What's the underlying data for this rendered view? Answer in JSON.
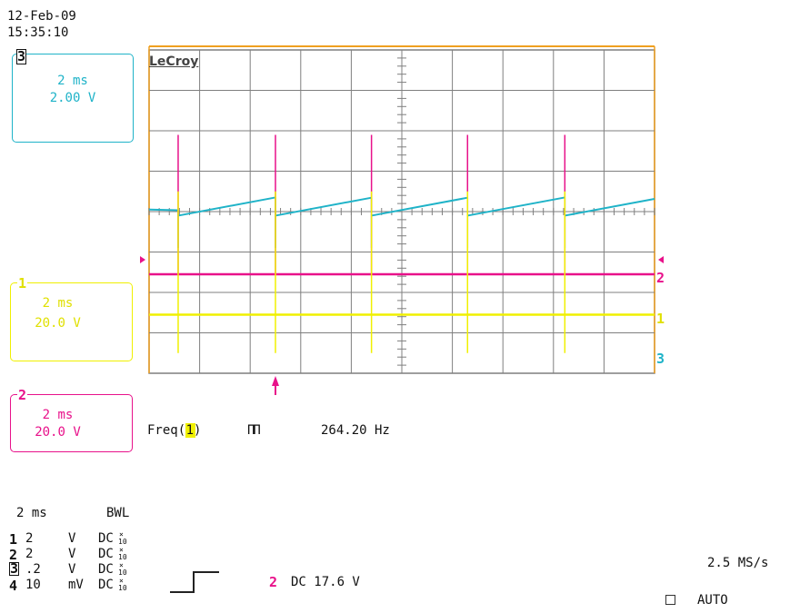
{
  "header": {
    "date": "12-Feb-09",
    "time": "15:35:10"
  },
  "brand": "LeCroy",
  "colors": {
    "ch1": "#f0f000",
    "ch2": "#e8118a",
    "ch3": "#1fb3c8",
    "grid": "#7f7f7f",
    "frame": "#f0a020"
  },
  "channel_boxes": [
    {
      "id": "3",
      "timebase": "2 ms",
      "volts": "2.00 V"
    },
    {
      "id": "1",
      "timebase": "2 ms",
      "volts": "20.0 V"
    },
    {
      "id": "2",
      "timebase": "2 ms",
      "volts": "20.0 V"
    }
  ],
  "trace_labels": {
    "ch2": "2",
    "ch1": "1",
    "ch3": "3"
  },
  "measurement": {
    "label": "Freq(",
    "channel": "1",
    "close": ")",
    "pulse_icon": "ΠΠ",
    "value": "264.20 Hz"
  },
  "settings": {
    "timebase": "2 ms",
    "bwl": "BWL",
    "rows": [
      {
        "ch": "1",
        "scale": "2",
        "unit": "V",
        "coupling": "DC",
        "probe_top": "×",
        "probe_bot": "10"
      },
      {
        "ch": "2",
        "scale": "2",
        "unit": "V",
        "coupling": "DC",
        "probe_top": "×",
        "probe_bot": "10"
      },
      {
        "ch": "3",
        "scale": ".2",
        "unit": "V",
        "coupling": "DC",
        "probe_top": "×",
        "probe_bot": "10"
      },
      {
        "ch": "4",
        "scale": "10",
        "unit": "mV",
        "coupling": "DC",
        "probe_top": "×",
        "probe_bot": "10"
      }
    ]
  },
  "trigger": {
    "source": "2",
    "coupling_level": "DC 17.6 V",
    "sample_rate": "2.5 MS/s",
    "mode": "AUTO"
  },
  "chart_data": {
    "type": "line",
    "title": "",
    "xlabel": "",
    "ylabel": "",
    "grid": true,
    "divisions": {
      "x": 10,
      "y": 8
    },
    "xlim_ms": [
      0,
      20
    ],
    "frequency_hz": 264.2,
    "edges_ms": [
      1.15,
      5.0,
      8.8,
      12.6,
      16.45
    ],
    "series": [
      {
        "id": "ch3",
        "values_div": {
          "ramp_start": -0.1,
          "ramp_end": 0.35
        }
      },
      {
        "id": "ch2",
        "values_div": {
          "baseline": -1.55,
          "spike_top": 1.9
        }
      },
      {
        "id": "ch1",
        "values_div": {
          "baseline": -2.55,
          "spike_top": 0.5,
          "spike_bottom": -3.5
        }
      }
    ]
  }
}
